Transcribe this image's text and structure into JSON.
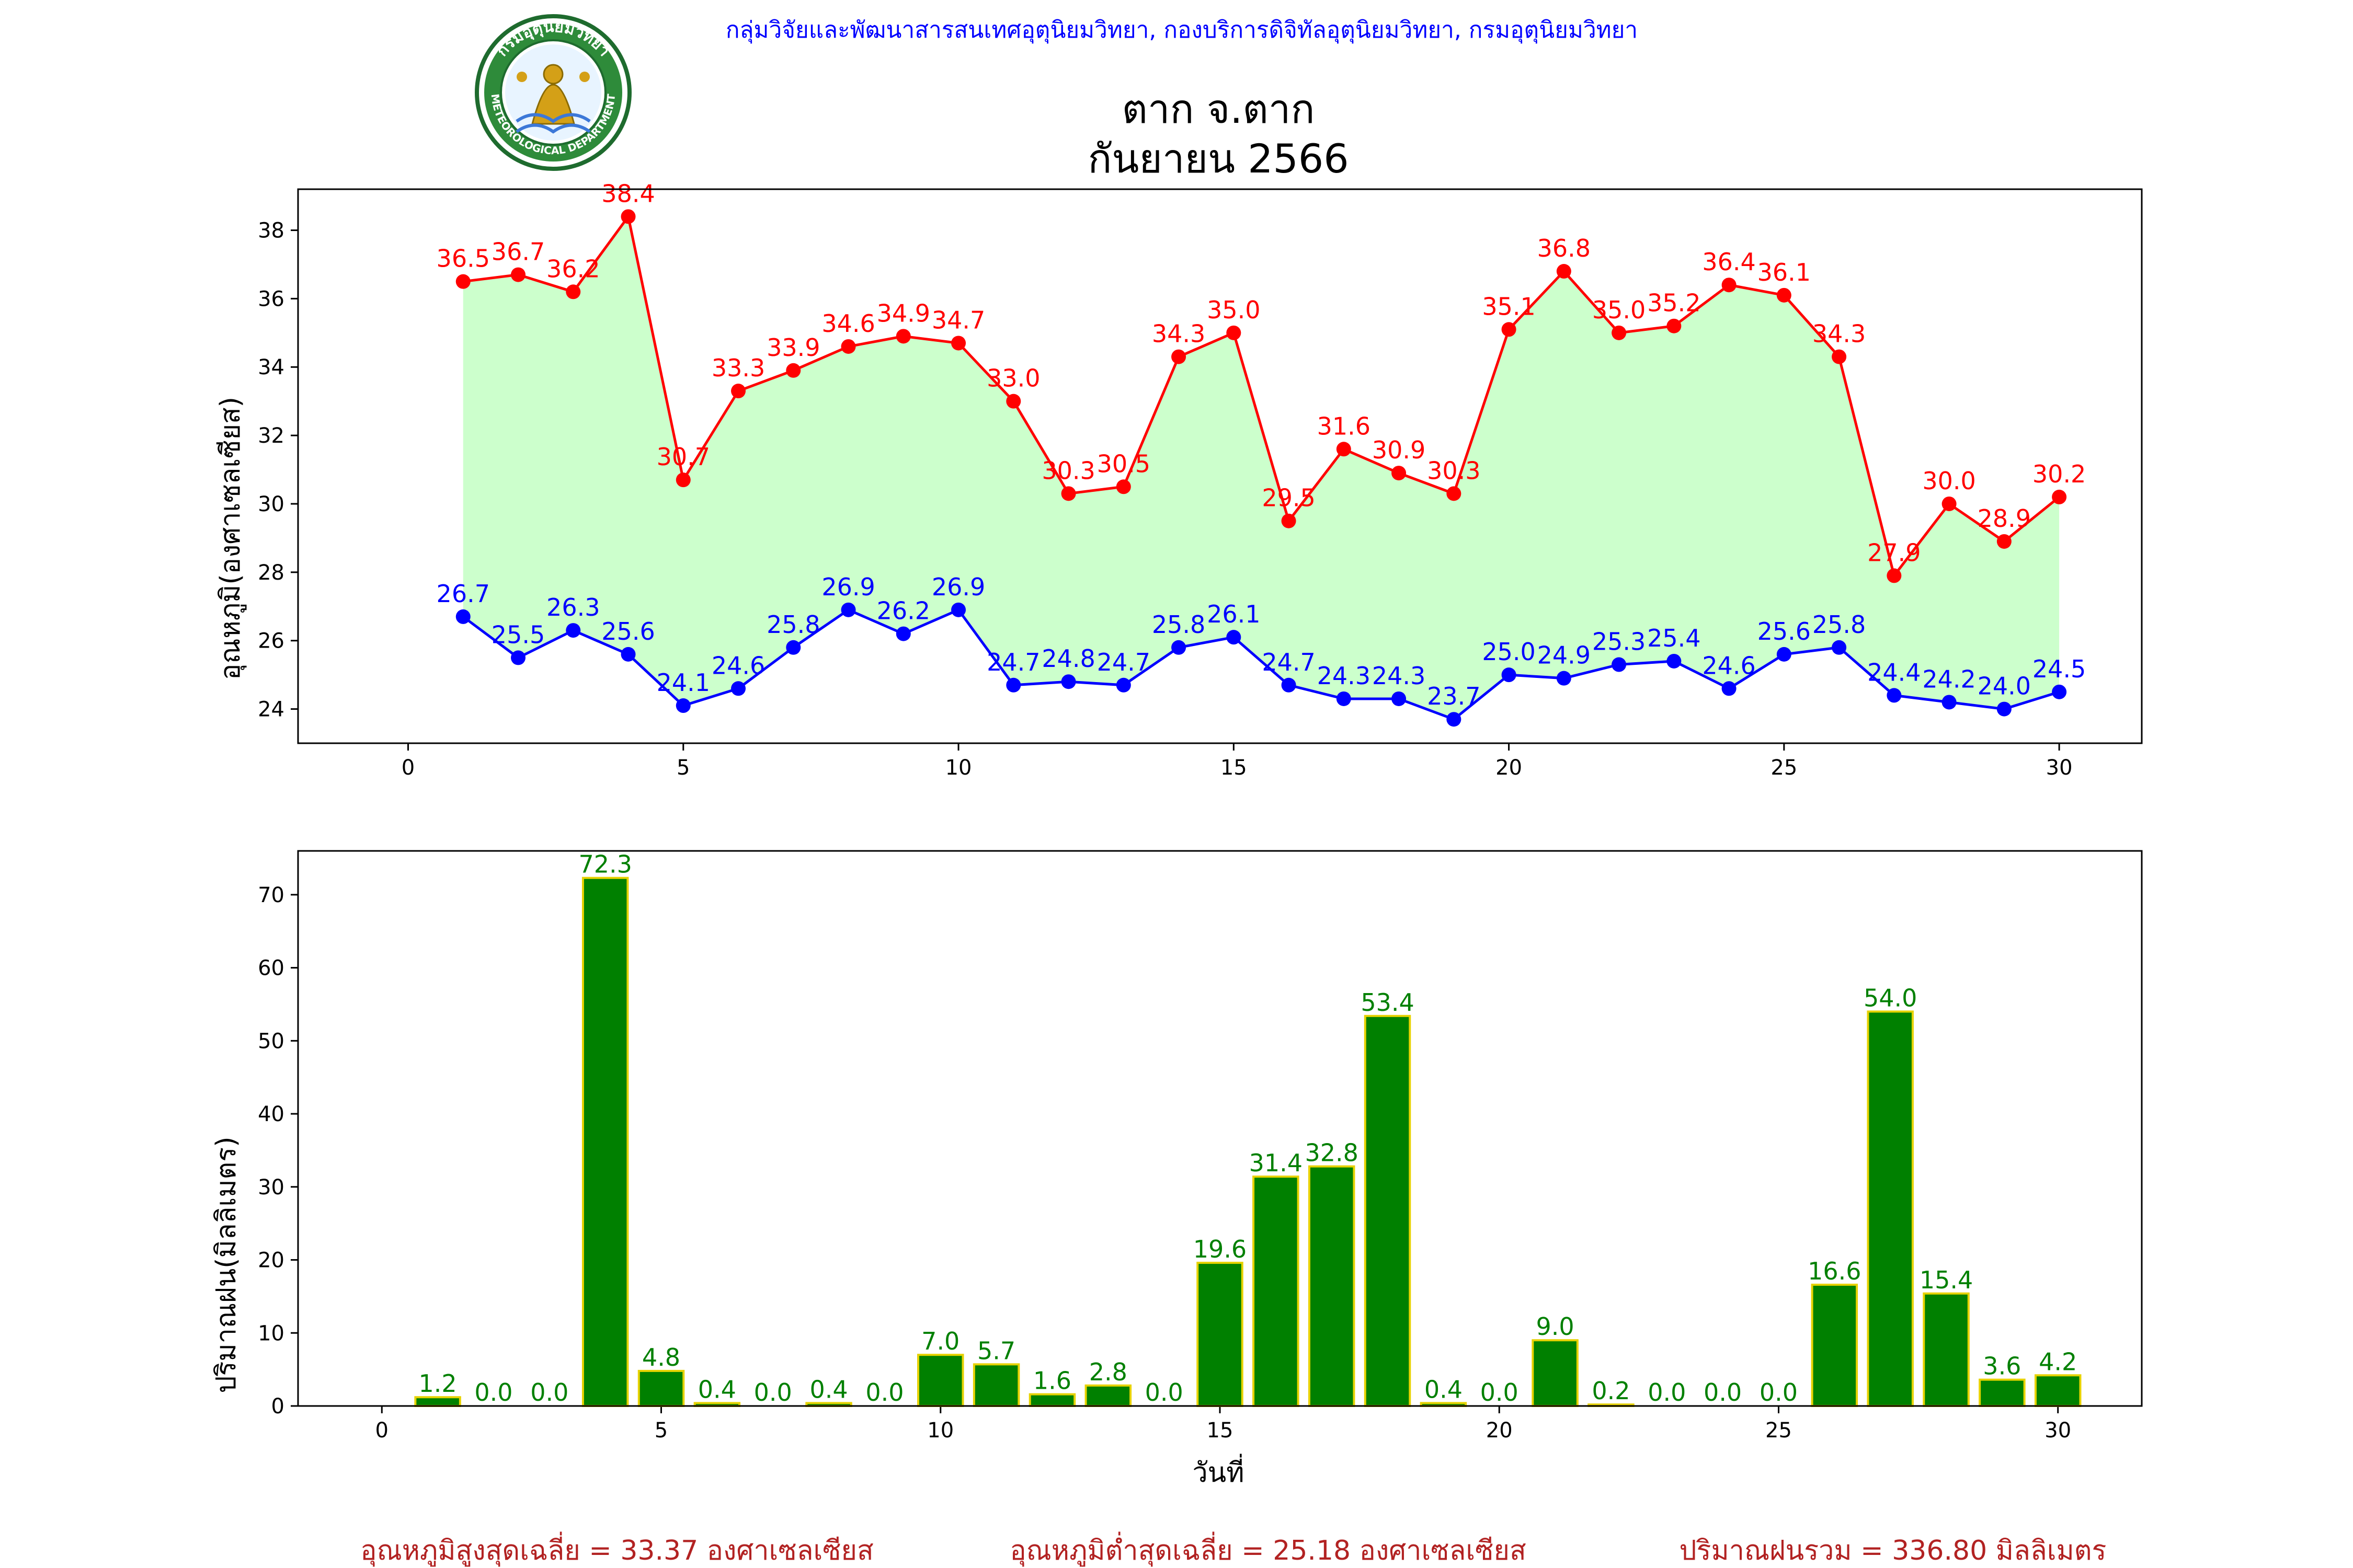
{
  "header": {
    "organization": "กลุ่มวิจัยและพัฒนาสารสนเทศอุตุนิยมวิทยา, กองบริการดิจิทัลอุตุนิยมวิทยา, กรมอุตุนิยมวิทยา",
    "logo_text_top": "กรมอุตุนิยมวิทยา",
    "logo_text_bottom": "METEOROLOGICAL DEPARTMENT",
    "title_line1": "ตาก จ.ตาก",
    "title_line2": "กันยายน 2566"
  },
  "colors": {
    "max_line": "#ff0000",
    "min_line": "#0000ff",
    "fill": "#ccffcc",
    "bar_fill": "#008000",
    "bar_edge": "#e6d200",
    "bar_label": "#008000",
    "header_text": "#0000ff",
    "summary_text": "#b22222"
  },
  "chart_data": [
    {
      "type": "line",
      "ylabel": "อุณหภูมิ(องศาเซลเซียส)",
      "xlabel": "",
      "xlim": [
        -2,
        31.5
      ],
      "ylim": [
        23,
        39.2
      ],
      "xticks": [
        0,
        5,
        10,
        15,
        20,
        25,
        30
      ],
      "yticks": [
        24,
        26,
        28,
        30,
        32,
        34,
        36,
        38
      ],
      "fill_between": true,
      "x": [
        1,
        2,
        3,
        4,
        5,
        6,
        7,
        8,
        9,
        10,
        11,
        12,
        13,
        14,
        15,
        16,
        17,
        18,
        19,
        20,
        21,
        22,
        23,
        24,
        25,
        26,
        27,
        28,
        29,
        30
      ],
      "series": [
        {
          "key": "max",
          "values": [
            36.5,
            36.7,
            36.2,
            38.4,
            30.7,
            33.3,
            33.9,
            34.6,
            34.9,
            34.7,
            33.0,
            30.3,
            30.5,
            34.3,
            35.0,
            29.5,
            31.6,
            30.9,
            30.3,
            35.1,
            36.8,
            35.0,
            35.2,
            36.4,
            36.1,
            34.3,
            27.9,
            30.0,
            28.9,
            30.2
          ]
        },
        {
          "key": "min",
          "values": [
            26.7,
            25.5,
            26.3,
            25.6,
            24.1,
            24.6,
            25.8,
            26.9,
            26.2,
            26.9,
            24.7,
            24.8,
            24.7,
            25.8,
            26.1,
            24.7,
            24.3,
            24.3,
            23.7,
            25.0,
            24.9,
            25.3,
            25.4,
            24.6,
            25.6,
            25.8,
            24.4,
            24.2,
            24.0,
            24.5
          ]
        }
      ]
    },
    {
      "type": "bar",
      "ylabel": "ปริมาณฝน(มิลลิเมตร)",
      "xlabel": "วันที่",
      "xlim": [
        -1.5,
        31.5
      ],
      "ylim": [
        0,
        76
      ],
      "xticks": [
        0,
        5,
        10,
        15,
        20,
        25,
        30
      ],
      "yticks": [
        0,
        10,
        20,
        30,
        40,
        50,
        60,
        70
      ],
      "x": [
        1,
        2,
        3,
        4,
        5,
        6,
        7,
        8,
        9,
        10,
        11,
        12,
        13,
        14,
        15,
        16,
        17,
        18,
        19,
        20,
        21,
        22,
        23,
        24,
        25,
        26,
        27,
        28,
        29,
        30
      ],
      "values": [
        1.2,
        0.0,
        0.0,
        72.3,
        4.8,
        0.4,
        0.0,
        0.4,
        0.0,
        7.0,
        5.7,
        1.6,
        2.8,
        0.0,
        19.6,
        31.4,
        32.8,
        53.4,
        0.4,
        0.0,
        9.0,
        0.2,
        0.0,
        0.0,
        0.0,
        16.6,
        54.0,
        15.4,
        3.6,
        4.2
      ]
    }
  ],
  "summary": {
    "avg_max": "อุณหภูมิสูงสุดเฉลี่ย = 33.37 องศาเซลเซียส",
    "avg_min": "อุณหภูมิต่ำสุดเฉลี่ย = 25.18 องศาเซลเซียส",
    "total_rain": "ปริมาณฝนรวม = 336.80 มิลลิเมตร"
  }
}
